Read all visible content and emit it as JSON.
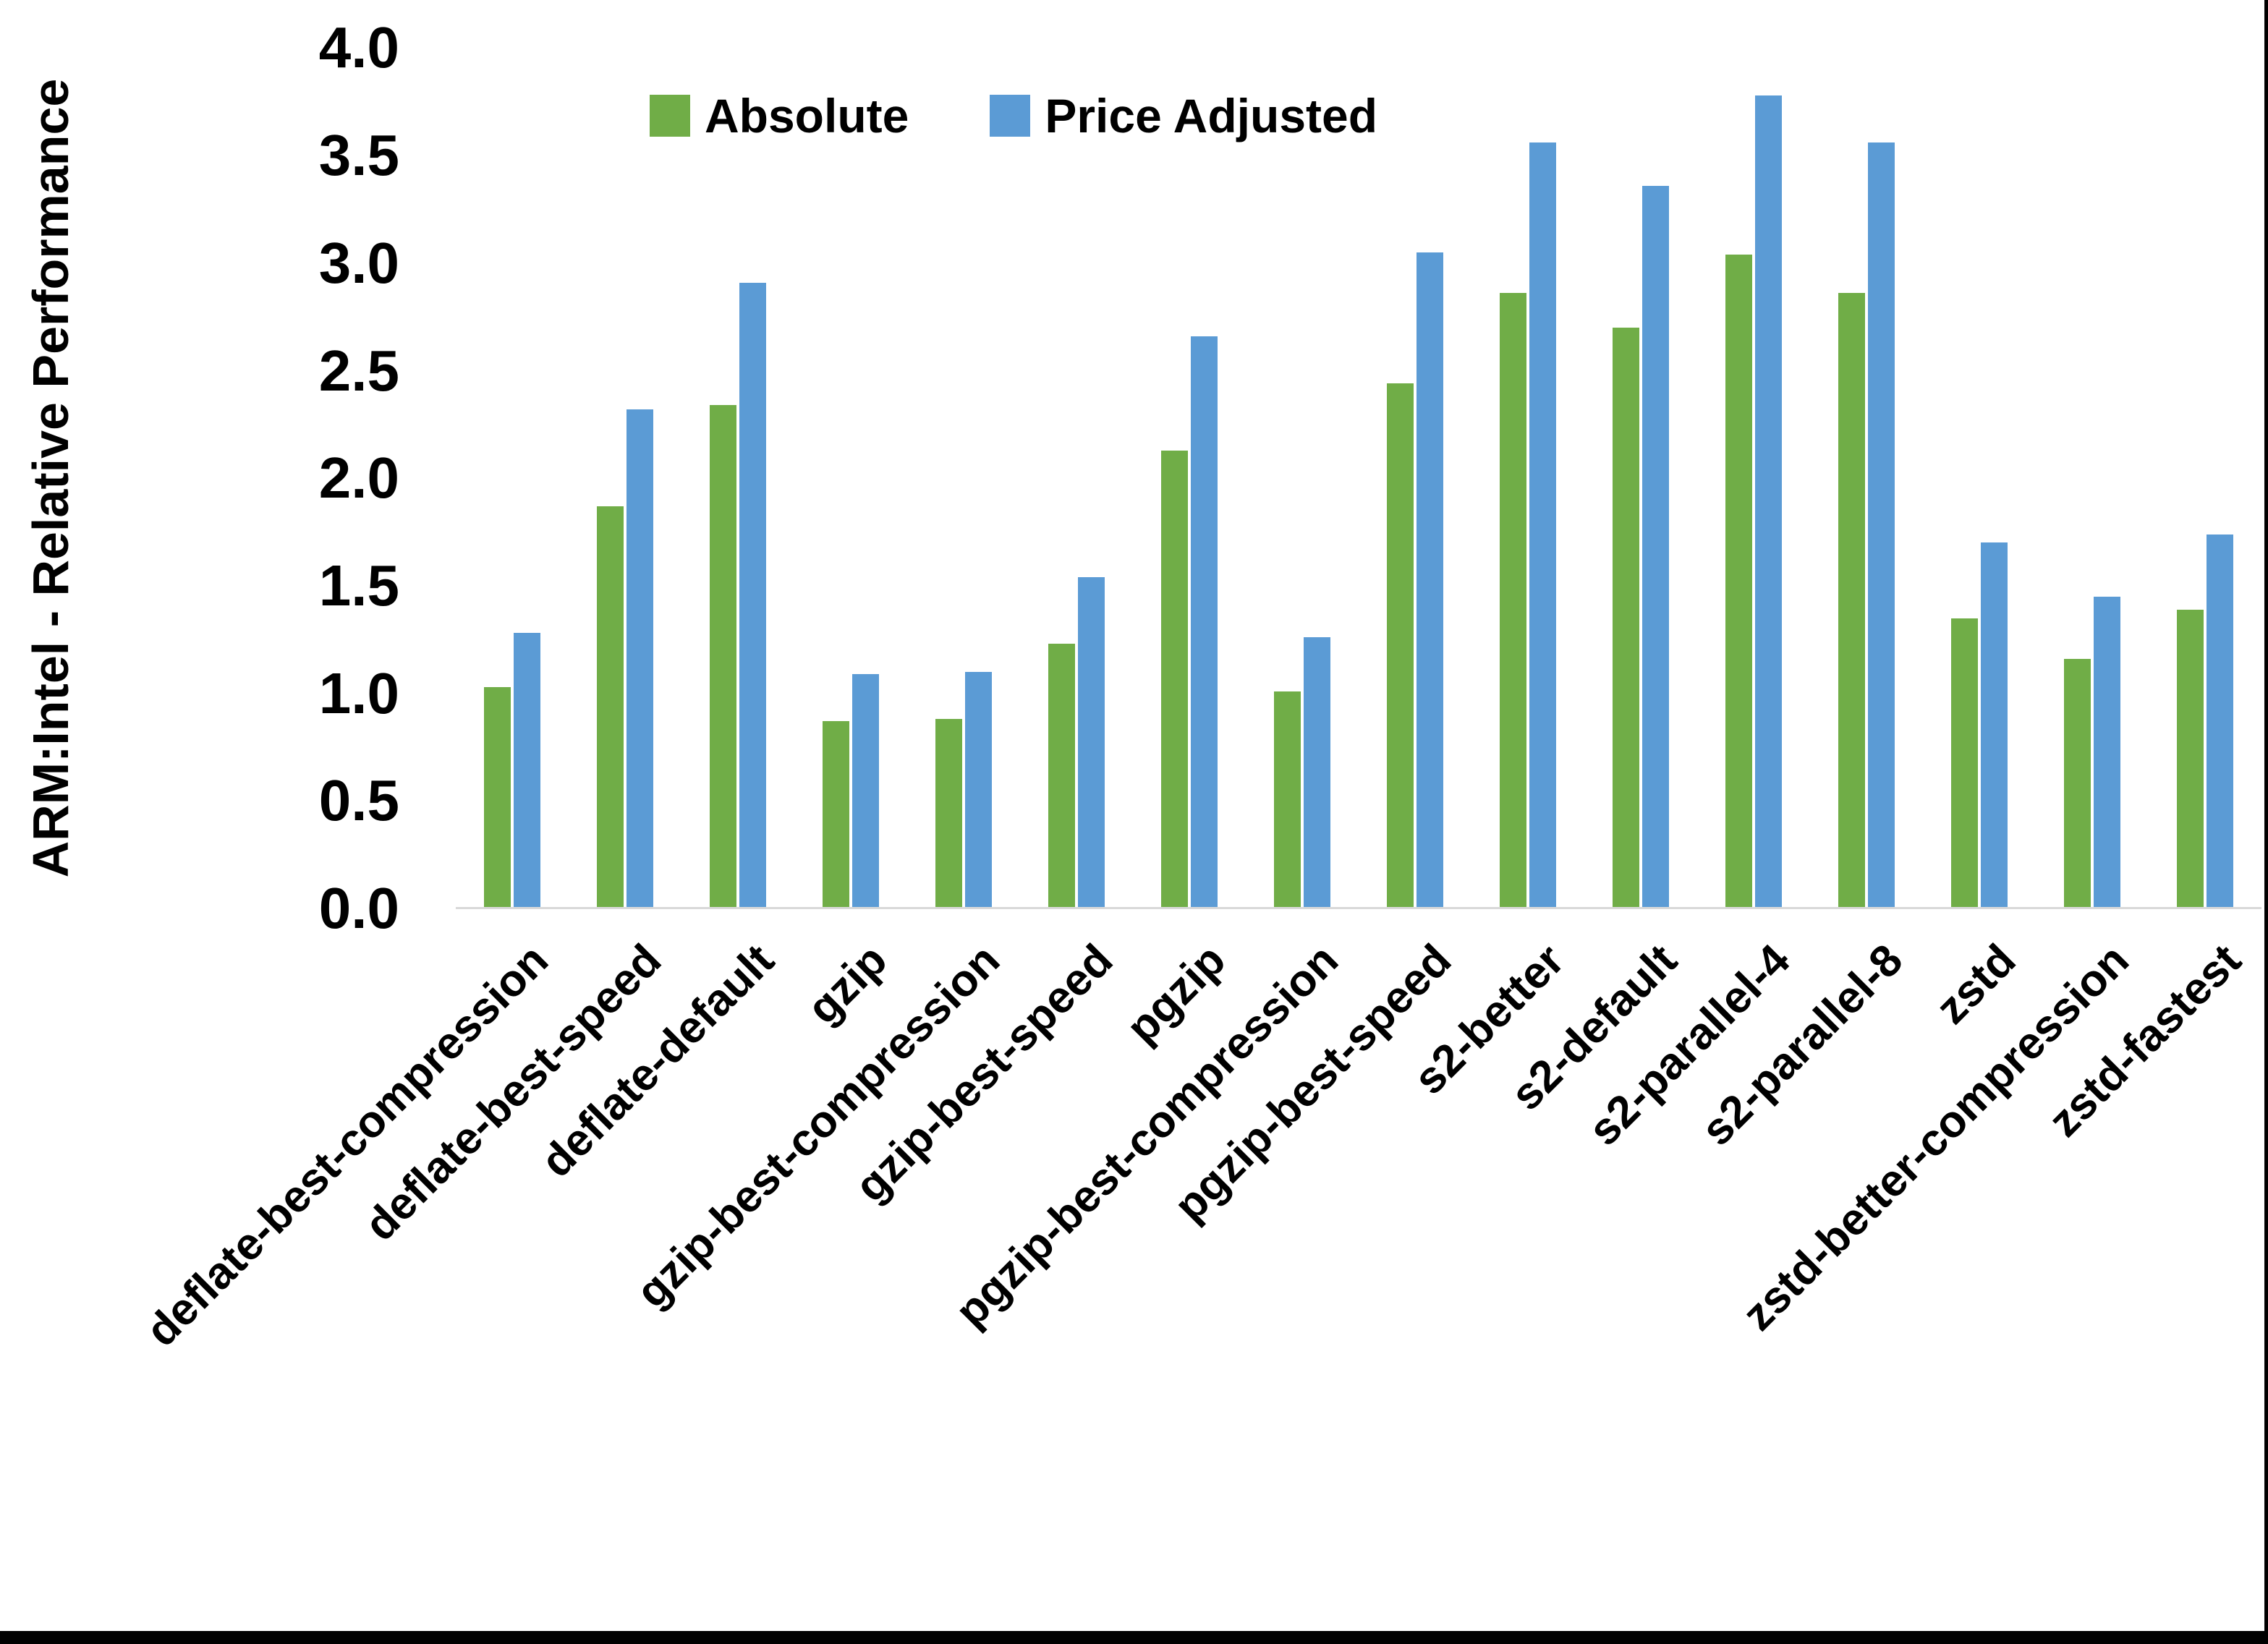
{
  "chart_data": {
    "type": "bar",
    "title": "",
    "ylabel": "ARM:Intel - Relative Performance",
    "xlabel": "",
    "ylim": [
      0.0,
      4.0
    ],
    "ytick_step": 0.5,
    "ytick_labels": [
      "0.0",
      "0.5",
      "1.0",
      "1.5",
      "2.0",
      "2.5",
      "3.0",
      "3.5",
      "4.0"
    ],
    "grid": false,
    "legend_position": "top-center",
    "categories": [
      "deflate-best-compression",
      "deflate-best-speed",
      "deflate-default",
      "gzip",
      "gzip-best-compression",
      "gzip-best-speed",
      "pgzip",
      "pgzip-best-compression",
      "pgzip-best-speed",
      "s2-better",
      "s2-default",
      "s2-parallel-4",
      "s2-parallel-8",
      "zstd",
      "zstd-better-compression",
      "zstd-fastest"
    ],
    "series": [
      {
        "name": "Absolute",
        "color": "#70AD47",
        "values": [
          1.03,
          1.87,
          2.34,
          0.87,
          0.88,
          1.23,
          2.13,
          1.01,
          2.44,
          2.86,
          2.7,
          3.04,
          2.86,
          1.35,
          1.16,
          1.39
        ]
      },
      {
        "name": "Price Adjusted",
        "color": "#5B9BD5",
        "values": [
          1.28,
          2.32,
          2.91,
          1.09,
          1.1,
          1.54,
          2.66,
          1.26,
          3.05,
          3.56,
          3.36,
          3.78,
          3.56,
          1.7,
          1.45,
          1.74
        ]
      }
    ],
    "axis_line_color": "#D9D9D9",
    "text_color": "#000000"
  }
}
